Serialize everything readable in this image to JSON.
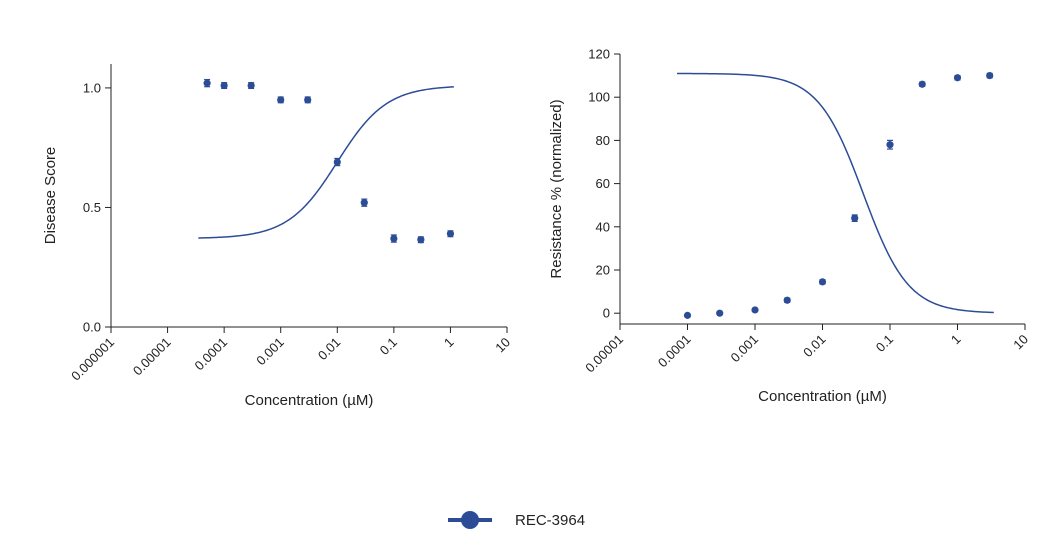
{
  "legend": {
    "label": "REC-3964"
  },
  "colors": {
    "series": "#2c4d96",
    "axis": "#222222"
  },
  "chart_data": [
    {
      "type": "scatter",
      "title": "",
      "xlabel": "Concentration (µM)",
      "ylabel": "Disease Score",
      "xscale": "log",
      "xlim": [
        1e-06,
        10
      ],
      "ylim": [
        0,
        1.1
      ],
      "xticks": [
        1e-06,
        1e-05,
        0.0001,
        0.001,
        0.01,
        0.1,
        1,
        10
      ],
      "xtick_labels": [
        "0.000001",
        "0.00001",
        "0.0001",
        "0.001",
        "0.01",
        "0.1",
        "1",
        "10"
      ],
      "yticks": [
        0,
        0.5,
        1.0
      ],
      "ytick_labels": [
        "0.0",
        "0.5",
        "1.0"
      ],
      "series": [
        {
          "name": "REC-3964",
          "x": [
            5e-05,
            0.0001,
            0.0003,
            0.001,
            0.003,
            0.01,
            0.03,
            0.1,
            0.3,
            1
          ],
          "y": [
            1.02,
            1.01,
            1.01,
            0.95,
            0.95,
            0.69,
            0.52,
            0.37,
            0.365,
            0.39
          ],
          "err": [
            0.015,
            0.012,
            0.012,
            0.012,
            0.012,
            0.015,
            0.015,
            0.015,
            0.012,
            0.012
          ]
        }
      ],
      "fit": {
        "top": 1.01,
        "bottom": 0.37,
        "ec50": 0.01,
        "hill": -1.0
      }
    },
    {
      "type": "scatter",
      "title": "",
      "xlabel": "Concentration (µM)",
      "ylabel": "Resistance % (normalized)",
      "xscale": "log",
      "xlim": [
        1e-05,
        10
      ],
      "ylim": [
        -5,
        120
      ],
      "xticks": [
        1e-05,
        0.0001,
        0.001,
        0.01,
        0.1,
        1,
        10
      ],
      "xtick_labels": [
        "0.00001",
        "0.0001",
        "0.001",
        "0.01",
        "0.1",
        "1",
        "10"
      ],
      "yticks": [
        0,
        20,
        40,
        60,
        80,
        100,
        120
      ],
      "ytick_labels": [
        "0",
        "20",
        "40",
        "60",
        "80",
        "100",
        "120"
      ],
      "series": [
        {
          "name": "REC-3964",
          "x": [
            0.0001,
            0.0003,
            0.001,
            0.003,
            0.01,
            0.03,
            0.1,
            0.3,
            1,
            3
          ],
          "y": [
            -1,
            0,
            1.5,
            6,
            14.5,
            44,
            78,
            106,
            109,
            110
          ],
          "err": [
            0.5,
            0.5,
            0.5,
            1,
            1,
            1.5,
            2,
            1,
            1,
            1
          ]
        }
      ],
      "fit": {
        "top": 111,
        "bottom": 0,
        "ec50": 0.04,
        "hill": 1.3
      }
    }
  ]
}
